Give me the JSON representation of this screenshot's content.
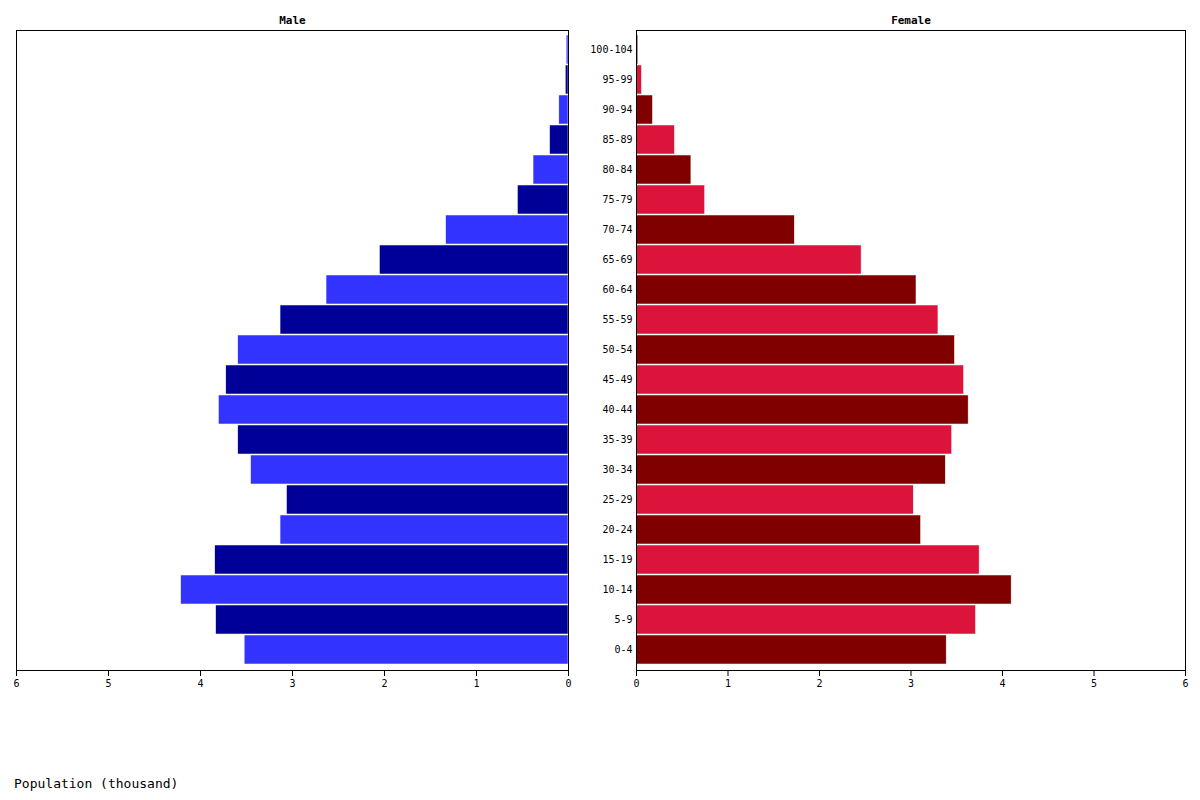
{
  "chart_data": {
    "type": "bar",
    "orientation": "horizontal",
    "xlabel": "Population (thousand)",
    "xlim": [
      0,
      6
    ],
    "xticks": [
      0,
      1,
      2,
      3,
      4,
      5,
      6
    ],
    "categories": [
      "0-4",
      "5-9",
      "10-14",
      "15-19",
      "20-24",
      "25-29",
      "30-34",
      "35-39",
      "40-44",
      "45-49",
      "50-54",
      "55-59",
      "60-64",
      "65-69",
      "70-74",
      "75-79",
      "80-84",
      "85-89",
      "90-94",
      "95-99",
      "100-104"
    ],
    "series": [
      {
        "name": "Male",
        "values": [
          3.52,
          3.83,
          4.21,
          3.84,
          3.13,
          3.06,
          3.45,
          3.59,
          3.8,
          3.72,
          3.59,
          3.13,
          2.63,
          2.05,
          1.33,
          0.55,
          0.38,
          0.2,
          0.1,
          0.03,
          0.02
        ],
        "colors": [
          "#3333ff",
          "#000099",
          "#3333ff",
          "#000099",
          "#3333ff",
          "#000099",
          "#3333ff",
          "#000099",
          "#3333ff",
          "#000099",
          "#3333ff",
          "#000099",
          "#3333ff",
          "#000099",
          "#3333ff",
          "#000099",
          "#3333ff",
          "#000099",
          "#3333ff",
          "#000099",
          "#3333ff"
        ]
      },
      {
        "name": "Female",
        "values": [
          3.39,
          3.71,
          4.1,
          3.75,
          3.11,
          3.03,
          3.38,
          3.45,
          3.63,
          3.58,
          3.48,
          3.3,
          3.06,
          2.46,
          1.73,
          0.75,
          0.6,
          0.42,
          0.18,
          0.06,
          0.02
        ],
        "colors": [
          "#800000",
          "#dc143c",
          "#800000",
          "#dc143c",
          "#800000",
          "#dc143c",
          "#800000",
          "#dc143c",
          "#800000",
          "#dc143c",
          "#800000",
          "#dc143c",
          "#800000",
          "#dc143c",
          "#800000",
          "#dc143c",
          "#800000",
          "#dc143c",
          "#800000",
          "#dc143c",
          "#800000"
        ]
      }
    ]
  }
}
